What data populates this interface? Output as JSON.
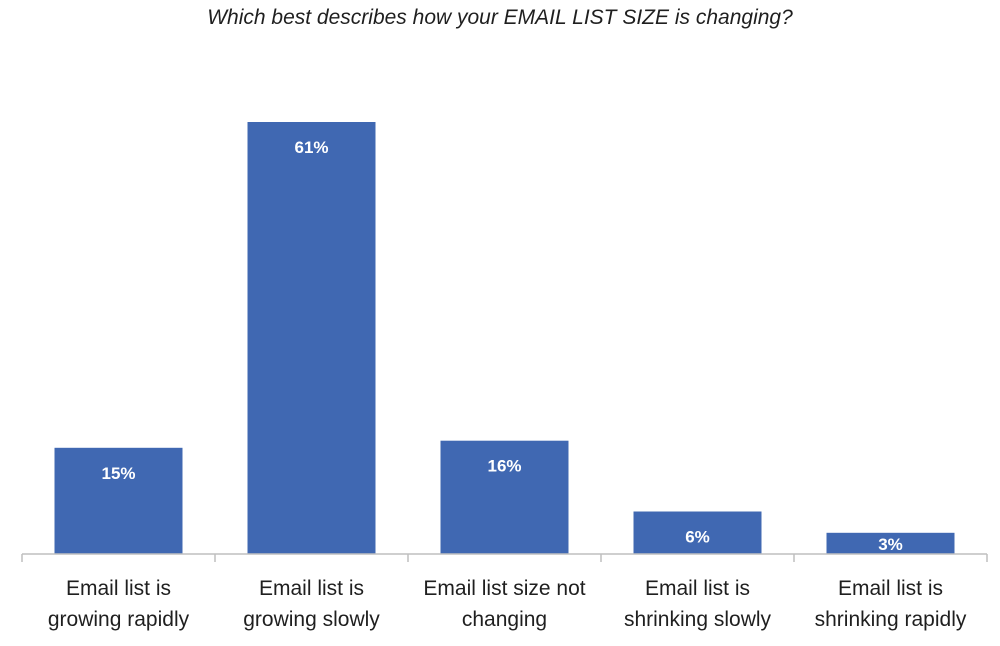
{
  "chart_data": {
    "type": "bar",
    "title": "Which best describes how your EMAIL LIST SIZE is changing?",
    "categories": [
      "Email list is growing rapidly",
      "Email list is growing slowly",
      "Email list size not changing",
      "Email list is shrinking slowly",
      "Email list is shrinking rapidly"
    ],
    "category_lines": [
      [
        "Email list is",
        "growing rapidly"
      ],
      [
        "Email list is",
        "growing slowly"
      ],
      [
        "Email list size not",
        "changing"
      ],
      [
        "Email list is",
        "shrinking slowly"
      ],
      [
        "Email list is",
        "shrinking rapidly"
      ]
    ],
    "values": [
      15,
      61,
      16,
      6,
      3
    ],
    "data_labels": [
      "15%",
      "61%",
      "16%",
      "6%",
      "3%"
    ],
    "xlabel": "",
    "ylabel": "",
    "ylim": [
      0,
      61
    ],
    "grid": false,
    "legend": "none",
    "bar_color": "#4068b2"
  }
}
